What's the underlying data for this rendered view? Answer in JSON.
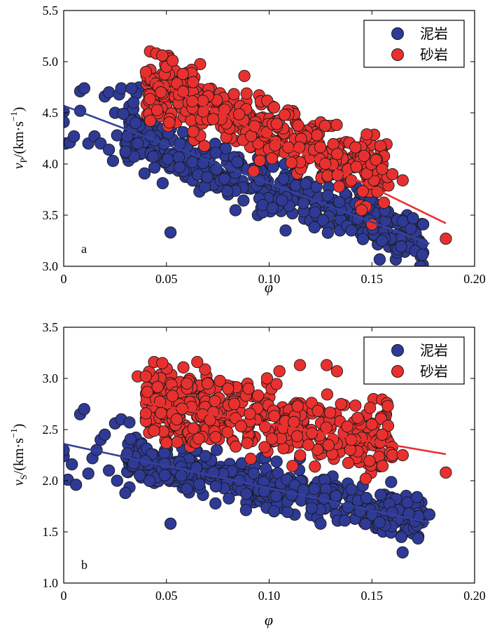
{
  "colors": {
    "mudstone": "#2E3A95",
    "sandstone": "#E8312F",
    "edge": "#1a1a1a",
    "line_mud": "#34419B",
    "line_sand": "#E8312F"
  },
  "chart_data": [
    {
      "type": "scatter",
      "panel_label": "a",
      "xlabel": "φ",
      "ylabel_main": "v",
      "ylabel_sub": "P",
      "ylabel_unit": "/(km·s",
      "ylabel_sup": "−1",
      "ylabel_close": ")",
      "xlim": [
        0,
        0.2
      ],
      "ylim": [
        3.0,
        5.5
      ],
      "xticks": [
        0,
        0.05,
        0.1,
        0.15,
        0.2
      ],
      "xtick_labels": [
        "0",
        "0.05",
        "0.10",
        "0.15",
        "0.20"
      ],
      "yticks": [
        3.0,
        3.5,
        4.0,
        4.5,
        5.0,
        5.5
      ],
      "ytick_labels": [
        "3.0",
        "3.5",
        "4.0",
        "4.5",
        "5.0",
        "5.5"
      ],
      "legend": [
        "泥岩",
        "砂岩"
      ],
      "legend_position": "top-right",
      "fit_lines": [
        {
          "series": "泥岩",
          "x": [
            0.0,
            0.178
          ],
          "y": [
            4.57,
            3.22
          ]
        },
        {
          "series": "砂岩",
          "x": [
            0.038,
            0.186
          ],
          "y": [
            4.87,
            3.42
          ]
        }
      ],
      "clusters": [
        {
          "series": "泥岩",
          "x_range": [
            0.03,
            0.175
          ],
          "y_start": 4.3,
          "slope": -7.4,
          "spread": 0.14,
          "count": 460,
          "seed": 11
        },
        {
          "series": "砂岩",
          "x_range": [
            0.04,
            0.16
          ],
          "y_start": 4.78,
          "slope": -7.6,
          "spread": 0.15,
          "count": 420,
          "seed": 29
        }
      ],
      "extra_points": [
        {
          "series": "泥岩",
          "points": [
            [
              0.0,
              4.51
            ],
            [
              0.0,
              4.41
            ],
            [
              0.001,
              4.2
            ],
            [
              0.003,
              4.21
            ],
            [
              0.008,
              4.52
            ],
            [
              0.008,
              4.71
            ],
            [
              0.01,
              4.74
            ],
            [
              0.005,
              4.27
            ],
            [
              0.012,
              4.2
            ],
            [
              0.015,
              4.27
            ],
            [
              0.018,
              4.2
            ],
            [
              0.02,
              4.66
            ],
            [
              0.022,
              4.7
            ],
            [
              0.022,
              4.14
            ],
            [
              0.024,
              4.03
            ],
            [
              0.025,
              4.5
            ],
            [
              0.026,
              4.28
            ],
            [
              0.027,
              4.68
            ],
            [
              0.028,
              4.74
            ],
            [
              0.029,
              4.49
            ],
            [
              0.03,
              4.12
            ],
            [
              0.031,
              4.27
            ],
            [
              0.033,
              4.74
            ],
            [
              0.034,
              4.6
            ],
            [
              0.035,
              4.4
            ],
            [
              0.036,
              4.2
            ],
            [
              0.052,
              3.33
            ],
            [
              0.108,
              3.35
            ],
            [
              0.122,
              3.38
            ],
            [
              0.14,
              3.35
            ],
            [
              0.155,
              3.25
            ],
            [
              0.165,
              3.44
            ],
            [
              0.17,
              3.47
            ],
            [
              0.175,
              3.41
            ]
          ]
        },
        {
          "series": "砂岩",
          "points": [
            [
              0.04,
              4.9
            ],
            [
              0.042,
              5.1
            ],
            [
              0.045,
              5.08
            ],
            [
              0.048,
              5.06
            ],
            [
              0.05,
              4.95
            ],
            [
              0.053,
              5.01
            ],
            [
              0.058,
              4.88
            ],
            [
              0.063,
              4.8
            ],
            [
              0.14,
              3.84
            ],
            [
              0.145,
              3.55
            ],
            [
              0.15,
              3.41
            ],
            [
              0.152,
              4.04
            ],
            [
              0.155,
              3.95
            ],
            [
              0.16,
              3.9
            ],
            [
              0.165,
              3.84
            ],
            [
              0.186,
              3.27
            ]
          ]
        }
      ]
    },
    {
      "type": "scatter",
      "panel_label": "b",
      "xlabel": "φ",
      "ylabel_main": "v",
      "ylabel_sub": "S",
      "ylabel_unit": "/(km·s",
      "ylabel_sup": "−1",
      "ylabel_close": ")",
      "xlim": [
        0,
        0.2
      ],
      "ylim": [
        1.0,
        3.5
      ],
      "xticks": [
        0,
        0.05,
        0.1,
        0.15,
        0.2
      ],
      "xtick_labels": [
        "0",
        "0.05",
        "0.10",
        "0.15",
        "0.20"
      ],
      "yticks": [
        1.0,
        1.5,
        2.0,
        2.5,
        3.0,
        3.5
      ],
      "ytick_labels": [
        "1.0",
        "1.5",
        "2.0",
        "2.5",
        "3.0",
        "3.5"
      ],
      "legend": [
        "泥岩",
        "砂岩"
      ],
      "legend_position": "top-right",
      "fit_lines": [
        {
          "series": "泥岩",
          "x": [
            0.0,
            0.178
          ],
          "y": [
            2.36,
            1.59
          ]
        },
        {
          "series": "砂岩",
          "x": [
            0.037,
            0.186
          ],
          "y": [
            2.77,
            2.26
          ]
        }
      ],
      "clusters": [
        {
          "series": "泥岩",
          "x_range": [
            0.03,
            0.175
          ],
          "y_start": 2.22,
          "slope": -4.2,
          "spread": 0.11,
          "count": 460,
          "seed": 41
        },
        {
          "series": "砂岩",
          "x_range": [
            0.04,
            0.16
          ],
          "y_start": 2.78,
          "slope": -3.1,
          "spread": 0.17,
          "count": 420,
          "seed": 57
        }
      ],
      "extra_points": [
        {
          "series": "泥岩",
          "points": [
            [
              0.0,
              2.24
            ],
            [
              0.0,
              2.3
            ],
            [
              0.002,
              2.01
            ],
            [
              0.004,
              2.16
            ],
            [
              0.006,
              1.96
            ],
            [
              0.008,
              2.65
            ],
            [
              0.01,
              2.7
            ],
            [
              0.012,
              2.07
            ],
            [
              0.014,
              2.22
            ],
            [
              0.016,
              2.3
            ],
            [
              0.018,
              2.4
            ],
            [
              0.02,
              2.45
            ],
            [
              0.022,
              2.1
            ],
            [
              0.025,
              2.56
            ],
            [
              0.026,
              2.0
            ],
            [
              0.028,
              2.6
            ],
            [
              0.03,
              1.88
            ],
            [
              0.032,
              2.57
            ],
            [
              0.034,
              2.17
            ],
            [
              0.052,
              1.58
            ],
            [
              0.115,
              2.22
            ],
            [
              0.125,
              1.58
            ],
            [
              0.16,
              1.69
            ],
            [
              0.168,
              1.68
            ],
            [
              0.172,
              1.84
            ],
            [
              0.178,
              1.67
            ]
          ]
        },
        {
          "series": "砂岩",
          "points": [
            [
              0.036,
              3.02
            ],
            [
              0.04,
              3.02
            ],
            [
              0.044,
              3.16
            ],
            [
              0.048,
              3.15
            ],
            [
              0.05,
              2.37
            ],
            [
              0.055,
              2.6
            ],
            [
              0.06,
              2.95
            ],
            [
              0.065,
              3.16
            ],
            [
              0.07,
              2.95
            ],
            [
              0.08,
              2.9
            ],
            [
              0.09,
              2.9
            ],
            [
              0.105,
              3.07
            ],
            [
              0.115,
              3.13
            ],
            [
              0.128,
              3.13
            ],
            [
              0.133,
              3.07
            ],
            [
              0.135,
              2.75
            ],
            [
              0.14,
              2.4
            ],
            [
              0.147,
              2.02
            ],
            [
              0.15,
              2.55
            ],
            [
              0.155,
              2.45
            ],
            [
              0.16,
              2.25
            ],
            [
              0.165,
              2.25
            ],
            [
              0.186,
              2.08
            ]
          ]
        }
      ]
    }
  ]
}
